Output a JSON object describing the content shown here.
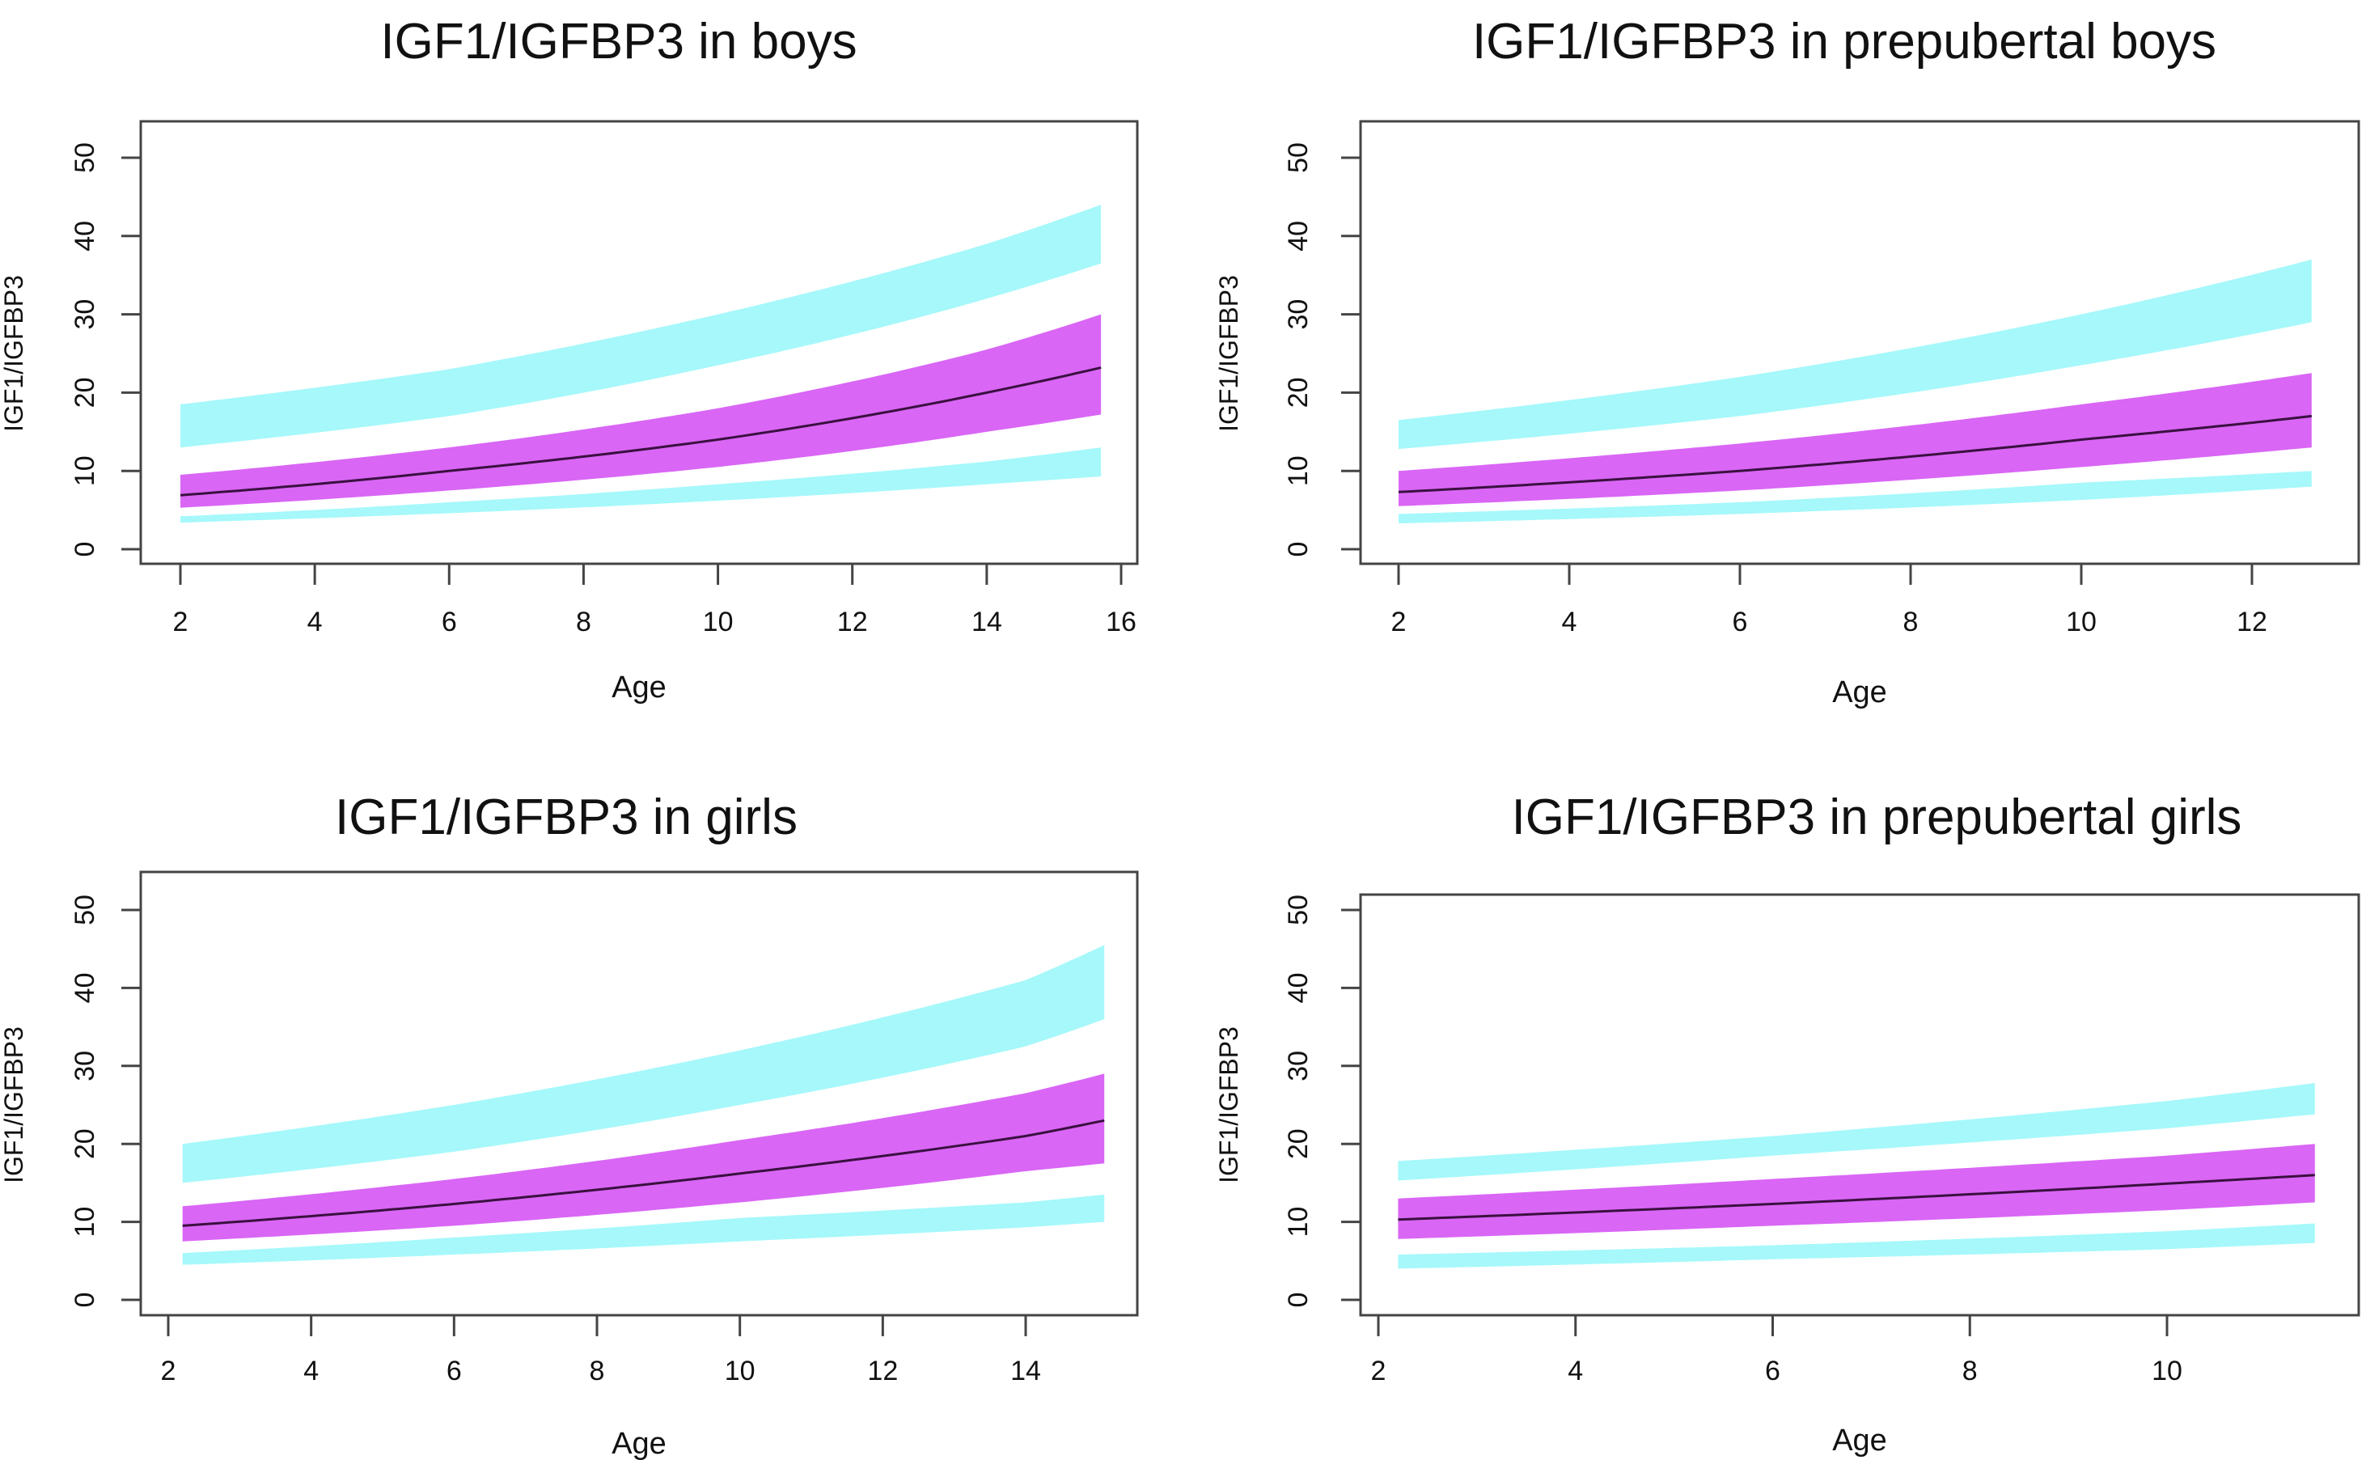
{
  "chart_data": [
    {
      "type": "area",
      "title": "IGF1/IGFBP3 in boys",
      "xlabel": "Age",
      "ylabel": "IGF1/IGFBP3",
      "xticks": [
        2,
        4,
        6,
        8,
        10,
        12,
        14,
        16
      ],
      "yticks": [
        0,
        10,
        20,
        30,
        40,
        50
      ],
      "xlim": [
        2,
        16
      ],
      "ylim": [
        0,
        50
      ],
      "grid": false,
      "x": [
        2,
        6,
        10,
        14,
        15.7
      ],
      "series": [
        {
          "band": "upper-outer",
          "color": "#a6f8fa",
          "upper": [
            18.5,
            23,
            30,
            39,
            44
          ],
          "lower": [
            13,
            17,
            23.5,
            32,
            36.5
          ]
        },
        {
          "band": "central",
          "color": "#d966f5",
          "upper": [
            9.5,
            13,
            18,
            25.5,
            30
          ],
          "lower": [
            5.3,
            7.5,
            10.5,
            15,
            17.2
          ]
        },
        {
          "band": "lower-outer",
          "color": "#a6f8fa",
          "upper": [
            4.2,
            6,
            8.3,
            11.2,
            13
          ],
          "lower": [
            3.4,
            4.6,
            6.2,
            8.3,
            9.3
          ]
        },
        {
          "line": "median",
          "color": "#3a1040",
          "values": [
            6.9,
            10,
            14,
            20,
            23.2
          ]
        }
      ]
    },
    {
      "type": "area",
      "title": "IGF1/IGFBP3 in prepubertal boys",
      "xlabel": "Age",
      "ylabel": "IGF1/IGFBP3",
      "xticks": [
        2,
        4,
        6,
        8,
        10,
        12
      ],
      "yticks": [
        0,
        10,
        20,
        30,
        40,
        50
      ],
      "xlim": [
        2,
        12.7
      ],
      "ylim": [
        0,
        50
      ],
      "grid": false,
      "x": [
        2,
        6,
        10,
        12.7
      ],
      "series": [
        {
          "band": "upper-outer",
          "color": "#a6f8fa",
          "upper": [
            16.5,
            22,
            30,
            37
          ],
          "lower": [
            12.8,
            17,
            23.5,
            29
          ]
        },
        {
          "band": "central",
          "color": "#d966f5",
          "upper": [
            10,
            13.5,
            18.5,
            22.5
          ],
          "lower": [
            5.5,
            7.5,
            10.5,
            13
          ]
        },
        {
          "band": "lower-outer",
          "color": "#a6f8fa",
          "upper": [
            4.5,
            6,
            8.5,
            10
          ],
          "lower": [
            3.3,
            4.5,
            6.3,
            8
          ]
        },
        {
          "line": "median",
          "color": "#3a1040",
          "values": [
            7.3,
            10,
            14,
            17
          ]
        }
      ]
    },
    {
      "type": "area",
      "title": "IGF1/IGFBP3 in girls",
      "xlabel": "Age",
      "ylabel": "IGF1/IGFBP3",
      "xticks": [
        2,
        4,
        6,
        8,
        10,
        12,
        14
      ],
      "yticks": [
        0,
        10,
        20,
        30,
        40,
        50
      ],
      "xlim": [
        2.2,
        15.1
      ],
      "ylim": [
        0,
        50
      ],
      "grid": false,
      "x": [
        2.2,
        6,
        10,
        14,
        15.1
      ],
      "series": [
        {
          "band": "upper-outer",
          "color": "#a6f8fa",
          "upper": [
            20,
            25,
            32,
            41,
            45.5
          ],
          "lower": [
            15,
            19,
            25,
            32.5,
            36
          ]
        },
        {
          "band": "central",
          "color": "#d966f5",
          "upper": [
            12,
            15.5,
            20.5,
            26.5,
            29
          ],
          "lower": [
            7.5,
            9.5,
            12.5,
            16.5,
            17.5
          ]
        },
        {
          "band": "lower-outer",
          "color": "#a6f8fa",
          "upper": [
            6,
            8,
            10.5,
            12.5,
            13.5
          ],
          "lower": [
            4.5,
            5.8,
            7.5,
            9.3,
            10
          ]
        },
        {
          "line": "median",
          "color": "#3a1040",
          "values": [
            9.5,
            12.3,
            16.2,
            21,
            23
          ]
        }
      ]
    },
    {
      "type": "area",
      "title": "IGF1/IGFBP3 in prepubertal girls",
      "xlabel": "Age",
      "ylabel": "IGF1/IGFBP3",
      "xticks": [
        2,
        4,
        6,
        8,
        10
      ],
      "yticks": [
        0,
        10,
        20,
        30,
        40,
        50
      ],
      "xlim": [
        2.2,
        11.5
      ],
      "ylim": [
        0,
        50
      ],
      "grid": false,
      "x": [
        2.2,
        6,
        10,
        11.5
      ],
      "series": [
        {
          "band": "upper-outer",
          "color": "#a6f8fa",
          "upper": [
            17.8,
            21,
            25.5,
            27.8
          ],
          "lower": [
            15.3,
            18.5,
            22,
            23.8
          ]
        },
        {
          "band": "central",
          "color": "#d966f5",
          "upper": [
            13,
            15.5,
            18.5,
            20
          ],
          "lower": [
            7.8,
            9.5,
            11.5,
            12.5
          ]
        },
        {
          "band": "lower-outer",
          "color": "#a6f8fa",
          "upper": [
            5.8,
            7,
            8.8,
            9.8
          ],
          "lower": [
            4,
            5.2,
            6.5,
            7.3
          ]
        },
        {
          "line": "median",
          "color": "#3a1040",
          "values": [
            10.3,
            12.3,
            14.9,
            16
          ]
        }
      ]
    }
  ]
}
